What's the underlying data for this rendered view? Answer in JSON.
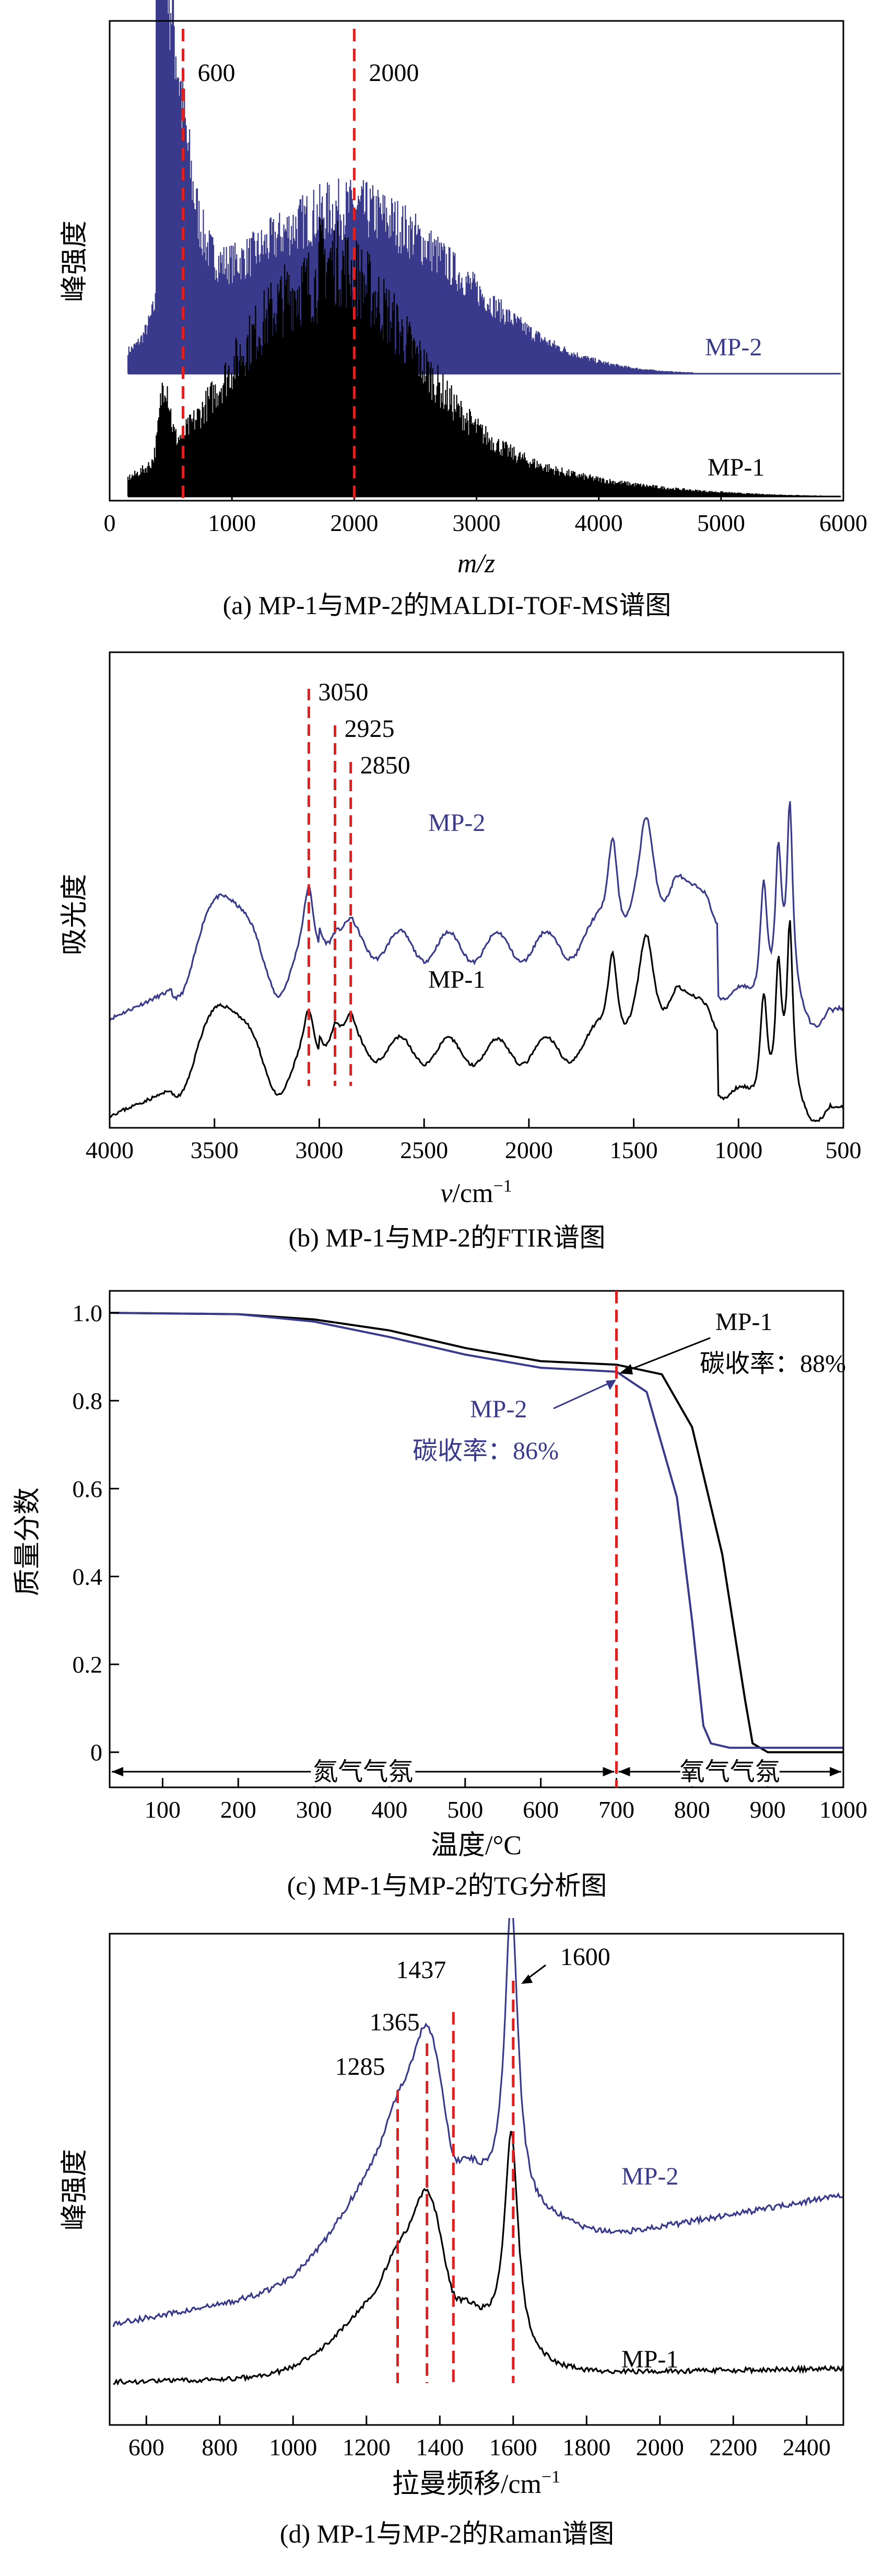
{
  "colors": {
    "mp2": "#3a3a8c",
    "mp1": "#000000",
    "ref": "#e02020"
  },
  "chart_data": [
    {
      "id": "a",
      "type": "line",
      "title": "(a) MP-1与MP-2的MALDI-TOF-MS谱图",
      "xlabel": "m/z",
      "ylabel": "峰强度",
      "xlim": [
        0,
        6000
      ],
      "x_ticks": [
        "0",
        "1000",
        "2000",
        "3000",
        "4000",
        "5000",
        "6000"
      ],
      "x_tick_values": [
        0,
        1000,
        2000,
        3000,
        4000,
        5000,
        6000
      ],
      "ref_lines": [
        {
          "x": 600,
          "label": "600"
        },
        {
          "x": 2000,
          "label": "2000"
        }
      ],
      "series": [
        {
          "name": "MP-2",
          "label": "MP-2"
        },
        {
          "name": "MP-1",
          "label": "MP-1"
        }
      ]
    },
    {
      "id": "b",
      "type": "line",
      "title": "(b) MP-1与MP-2的FTIR谱图",
      "xlabel_main": "v",
      "xlabel_unit": "/cm",
      "xlabel_sup": "−1",
      "ylabel": "吸光度",
      "xlim": [
        4000,
        500
      ],
      "reversed": true,
      "x_ticks": [
        "4000",
        "3500",
        "3000",
        "2500",
        "2000",
        "1500",
        "1000",
        "500"
      ],
      "x_tick_values": [
        4000,
        3500,
        3000,
        2500,
        2000,
        1500,
        1000,
        500
      ],
      "ref_lines": [
        {
          "x": 3050,
          "label": "3050"
        },
        {
          "x": 2925,
          "label": "2925"
        },
        {
          "x": 2850,
          "label": "2850"
        }
      ],
      "series": [
        {
          "name": "MP-2",
          "label": "MP-2"
        },
        {
          "name": "MP-1",
          "label": "MP-1"
        }
      ]
    },
    {
      "id": "c",
      "type": "line",
      "title": "(c) MP-1与MP-2的TG分析图",
      "xlabel": "温度/°C",
      "ylabel": "质量分数",
      "xlim": [
        30,
        1000
      ],
      "ylim": [
        -0.08,
        1.05
      ],
      "x_ticks": [
        "100",
        "200",
        "300",
        "400",
        "500",
        "600",
        "700",
        "800",
        "900",
        "1000"
      ],
      "x_tick_values": [
        100,
        200,
        300,
        400,
        500,
        600,
        700,
        800,
        900,
        1000
      ],
      "y_ticks": [
        "0",
        "0.2",
        "0.4",
        "0.6",
        "0.8",
        "1.0"
      ],
      "y_tick_values": [
        0,
        0.2,
        0.4,
        0.6,
        0.8,
        1.0
      ],
      "ref_lines": [
        {
          "x": 700
        }
      ],
      "regions": [
        {
          "from": 30,
          "to": 700,
          "label": "氮气气氛"
        },
        {
          "from": 700,
          "to": 1000,
          "label": "氧气气氛"
        }
      ],
      "annotations": [
        {
          "series": "MP-1",
          "name": "MP-1",
          "text": "碳收率：88%"
        },
        {
          "series": "MP-2",
          "name": "MP-2",
          "text": "碳收率：86%"
        }
      ],
      "series": [
        {
          "name": "MP-1",
          "points": [
            [
              30,
              1.0
            ],
            [
              200,
              0.997
            ],
            [
              300,
              0.985
            ],
            [
              400,
              0.96
            ],
            [
              500,
              0.92
            ],
            [
              600,
              0.89
            ],
            [
              700,
              0.882
            ],
            [
              760,
              0.86
            ],
            [
              800,
              0.74
            ],
            [
              840,
              0.45
            ],
            [
              870,
              0.12
            ],
            [
              880,
              0.02
            ],
            [
              900,
              0.0
            ],
            [
              1000,
              0.0
            ]
          ]
        },
        {
          "name": "MP-2",
          "points": [
            [
              30,
              1.0
            ],
            [
              200,
              0.997
            ],
            [
              300,
              0.98
            ],
            [
              400,
              0.945
            ],
            [
              500,
              0.905
            ],
            [
              600,
              0.875
            ],
            [
              700,
              0.866
            ],
            [
              740,
              0.82
            ],
            [
              780,
              0.58
            ],
            [
              800,
              0.3
            ],
            [
              815,
              0.06
            ],
            [
              825,
              0.02
            ],
            [
              850,
              0.01
            ],
            [
              1000,
              0.01
            ]
          ]
        }
      ]
    },
    {
      "id": "d",
      "type": "line",
      "title": "(d) MP-1与MP-2的Raman谱图",
      "xlabel_main": "拉曼频移/cm",
      "xlabel_sup": "−1",
      "ylabel": "峰强度",
      "xlim": [
        500,
        2500
      ],
      "x_ticks": [
        "600",
        "800",
        "1000",
        "1200",
        "1400",
        "1600",
        "1800",
        "2000",
        "2200",
        "2400"
      ],
      "x_tick_values": [
        600,
        800,
        1000,
        1200,
        1400,
        1600,
        1800,
        2000,
        2200,
        2400
      ],
      "ref_lines": [
        {
          "x": 1285,
          "label": "1285"
        },
        {
          "x": 1365,
          "label": "1365"
        },
        {
          "x": 1437,
          "label": "1437"
        },
        {
          "x": 1600,
          "label": "1600"
        }
      ],
      "series": [
        {
          "name": "MP-2",
          "label": "MP-2"
        },
        {
          "name": "MP-1",
          "label": "MP-1"
        }
      ]
    }
  ]
}
